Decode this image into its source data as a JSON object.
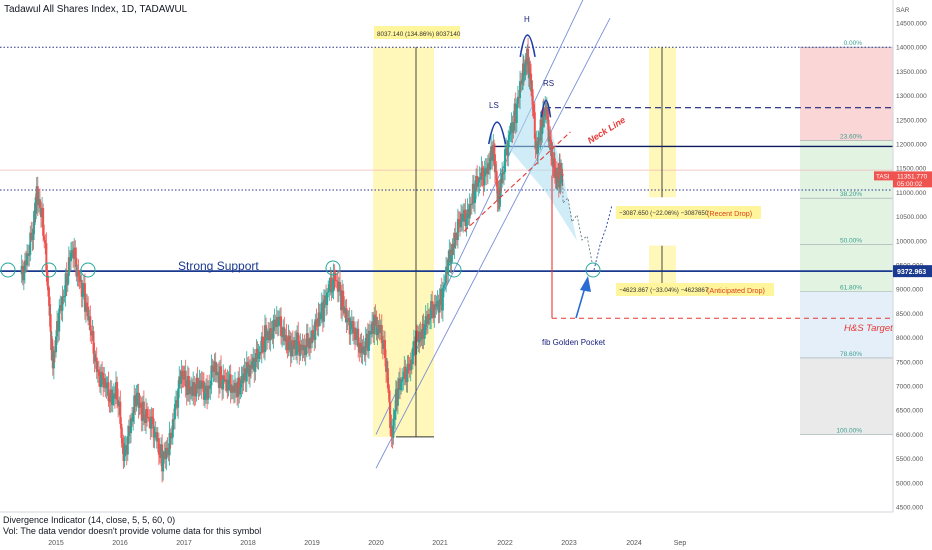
{
  "header": {
    "title": "Tadawul All Shares Index, 1D, TADAWUL"
  },
  "currency": "SAR",
  "footer": {
    "indicator": "Divergence Indicator (14, close, 5, 5, 60, 0)",
    "note": "Vol: The data vendor doesn't provide volume data for this symbol"
  },
  "colors": {
    "up": "#26a69a",
    "down": "#ef5350",
    "support": "#1a3a8f",
    "neck": "#e53935",
    "fib_red": "#f8c8c8",
    "fib_green": "#d8efd8",
    "fib_blue": "#dbe9f7",
    "fib_grey": "#e3e3e3",
    "highlight_yellow": "#fff59d"
  },
  "chart_data": {
    "type": "candlestick",
    "ylim": [
      4500,
      14800
    ],
    "y_ticks": [
      "14500.000",
      "14000.000",
      "13500.000",
      "13000.000",
      "12500.000",
      "12000.000",
      "11500.000",
      "11000.000",
      "10500.000",
      "10000.000",
      "9500.000",
      "9000.000",
      "8500.000",
      "8000.000",
      "7500.000",
      "7000.000",
      "6500.000",
      "6000.000",
      "5500.000",
      "5000.000",
      "4500.000"
    ],
    "x_ticks": [
      "2015",
      "2016",
      "2017",
      "2018",
      "2019",
      "2020",
      "2021",
      "2022",
      "2023",
      "2024",
      "Sep"
    ],
    "price_series": [
      {
        "year": 2014.45,
        "close": 9200
      },
      {
        "year": 2014.55,
        "close": 9700
      },
      {
        "year": 2014.65,
        "close": 10200
      },
      {
        "year": 2014.7,
        "close": 11100
      },
      {
        "year": 2014.8,
        "close": 10300
      },
      {
        "year": 2014.9,
        "close": 8500
      },
      {
        "year": 2014.95,
        "close": 7500
      },
      {
        "year": 2015.05,
        "close": 8400
      },
      {
        "year": 2015.15,
        "close": 9200
      },
      {
        "year": 2015.25,
        "close": 9800
      },
      {
        "year": 2015.35,
        "close": 9300
      },
      {
        "year": 2015.45,
        "close": 8800
      },
      {
        "year": 2015.55,
        "close": 8000
      },
      {
        "year": 2015.65,
        "close": 7300
      },
      {
        "year": 2015.75,
        "close": 7000
      },
      {
        "year": 2015.85,
        "close": 6800
      },
      {
        "year": 2015.95,
        "close": 6900
      },
      {
        "year": 2016.05,
        "close": 5500
      },
      {
        "year": 2016.15,
        "close": 6200
      },
      {
        "year": 2016.25,
        "close": 6700
      },
      {
        "year": 2016.35,
        "close": 6500
      },
      {
        "year": 2016.45,
        "close": 6300
      },
      {
        "year": 2016.55,
        "close": 6000
      },
      {
        "year": 2016.65,
        "close": 5500
      },
      {
        "year": 2016.75,
        "close": 5600
      },
      {
        "year": 2016.85,
        "close": 6600
      },
      {
        "year": 2016.95,
        "close": 7200
      },
      {
        "year": 2017.05,
        "close": 7000
      },
      {
        "year": 2017.15,
        "close": 6950
      },
      {
        "year": 2017.25,
        "close": 7000
      },
      {
        "year": 2017.35,
        "close": 6900
      },
      {
        "year": 2017.45,
        "close": 7300
      },
      {
        "year": 2017.55,
        "close": 7200
      },
      {
        "year": 2017.65,
        "close": 7100
      },
      {
        "year": 2017.75,
        "close": 6900
      },
      {
        "year": 2017.85,
        "close": 7050
      },
      {
        "year": 2017.95,
        "close": 7200
      },
      {
        "year": 2018.05,
        "close": 7500
      },
      {
        "year": 2018.15,
        "close": 7600
      },
      {
        "year": 2018.25,
        "close": 8000
      },
      {
        "year": 2018.35,
        "close": 8200
      },
      {
        "year": 2018.45,
        "close": 8300
      },
      {
        "year": 2018.55,
        "close": 8100
      },
      {
        "year": 2018.65,
        "close": 7700
      },
      {
        "year": 2018.75,
        "close": 7900
      },
      {
        "year": 2018.85,
        "close": 7800
      },
      {
        "year": 2018.95,
        "close": 7850
      },
      {
        "year": 2019.05,
        "close": 8400
      },
      {
        "year": 2019.15,
        "close": 8500
      },
      {
        "year": 2019.25,
        "close": 9100
      },
      {
        "year": 2019.35,
        "close": 9200
      },
      {
        "year": 2019.45,
        "close": 8700
      },
      {
        "year": 2019.55,
        "close": 8400
      },
      {
        "year": 2019.65,
        "close": 8000
      },
      {
        "year": 2019.75,
        "close": 7800
      },
      {
        "year": 2019.85,
        "close": 7900
      },
      {
        "year": 2019.95,
        "close": 8300
      },
      {
        "year": 2020.05,
        "close": 8200
      },
      {
        "year": 2020.15,
        "close": 7200
      },
      {
        "year": 2020.22,
        "close": 6000
      },
      {
        "year": 2020.3,
        "close": 6800
      },
      {
        "year": 2020.4,
        "close": 7200
      },
      {
        "year": 2020.5,
        "close": 7400
      },
      {
        "year": 2020.6,
        "close": 7900
      },
      {
        "year": 2020.7,
        "close": 8200
      },
      {
        "year": 2020.8,
        "close": 8400
      },
      {
        "year": 2020.9,
        "close": 8700
      },
      {
        "year": 2021.0,
        "close": 8800
      },
      {
        "year": 2021.1,
        "close": 9500
      },
      {
        "year": 2021.2,
        "close": 10100
      },
      {
        "year": 2021.3,
        "close": 10400
      },
      {
        "year": 2021.4,
        "close": 10600
      },
      {
        "year": 2021.5,
        "close": 11000
      },
      {
        "year": 2021.6,
        "close": 11300
      },
      {
        "year": 2021.7,
        "close": 11500
      },
      {
        "year": 2021.8,
        "close": 11800
      },
      {
        "year": 2021.88,
        "close": 10900
      },
      {
        "year": 2021.95,
        "close": 11400
      },
      {
        "year": 2022.05,
        "close": 12200
      },
      {
        "year": 2022.15,
        "close": 12700
      },
      {
        "year": 2022.25,
        "close": 13300
      },
      {
        "year": 2022.33,
        "close": 13900
      },
      {
        "year": 2022.4,
        "close": 13000
      },
      {
        "year": 2022.47,
        "close": 11900
      },
      {
        "year": 2022.55,
        "close": 12400
      },
      {
        "year": 2022.62,
        "close": 12700
      },
      {
        "year": 2022.7,
        "close": 11900
      },
      {
        "year": 2022.77,
        "close": 11200
      },
      {
        "year": 2022.83,
        "close": 11400
      },
      {
        "year": 2022.88,
        "close": 11351
      }
    ],
    "last_price": "11351.770",
    "last_symbol": "TASI",
    "countdown": "05:00:02",
    "support_value": "9372.963",
    "support_level": 9373,
    "neck_level": 11950,
    "top_level": 14000,
    "rs_level": 12750,
    "mid_level": 11050,
    "hs_target": 8400,
    "labels": {
      "strong_support": "Strong Support",
      "neck_line": "Neck Line",
      "ls": "LS",
      "h": "H",
      "rs": "RS",
      "golden_pocket": "fib Golden Pocket",
      "hs_target": "H&S Target",
      "big_measure": "8037.140 (134.86%) 8037140",
      "recent_drop_value": "−3087.650 (−22.06%) −3087650",
      "recent_drop_label": "(Recent Drop)",
      "anticipated_value": "−4623.867 (−33.04%) −4623867",
      "anticipated_label": "(Anticipated Drop)"
    },
    "fib_levels": [
      {
        "label": "0.00%",
        "value": 14000
      },
      {
        "label": "23.60%",
        "value": 12070
      },
      {
        "label": "38.20%",
        "value": 10880
      },
      {
        "label": "50.00%",
        "value": 9920
      },
      {
        "label": "61.80%",
        "value": 8950
      },
      {
        "label": "78.60%",
        "value": 7580
      },
      {
        "label": "100.00%",
        "value": 6000
      }
    ]
  }
}
